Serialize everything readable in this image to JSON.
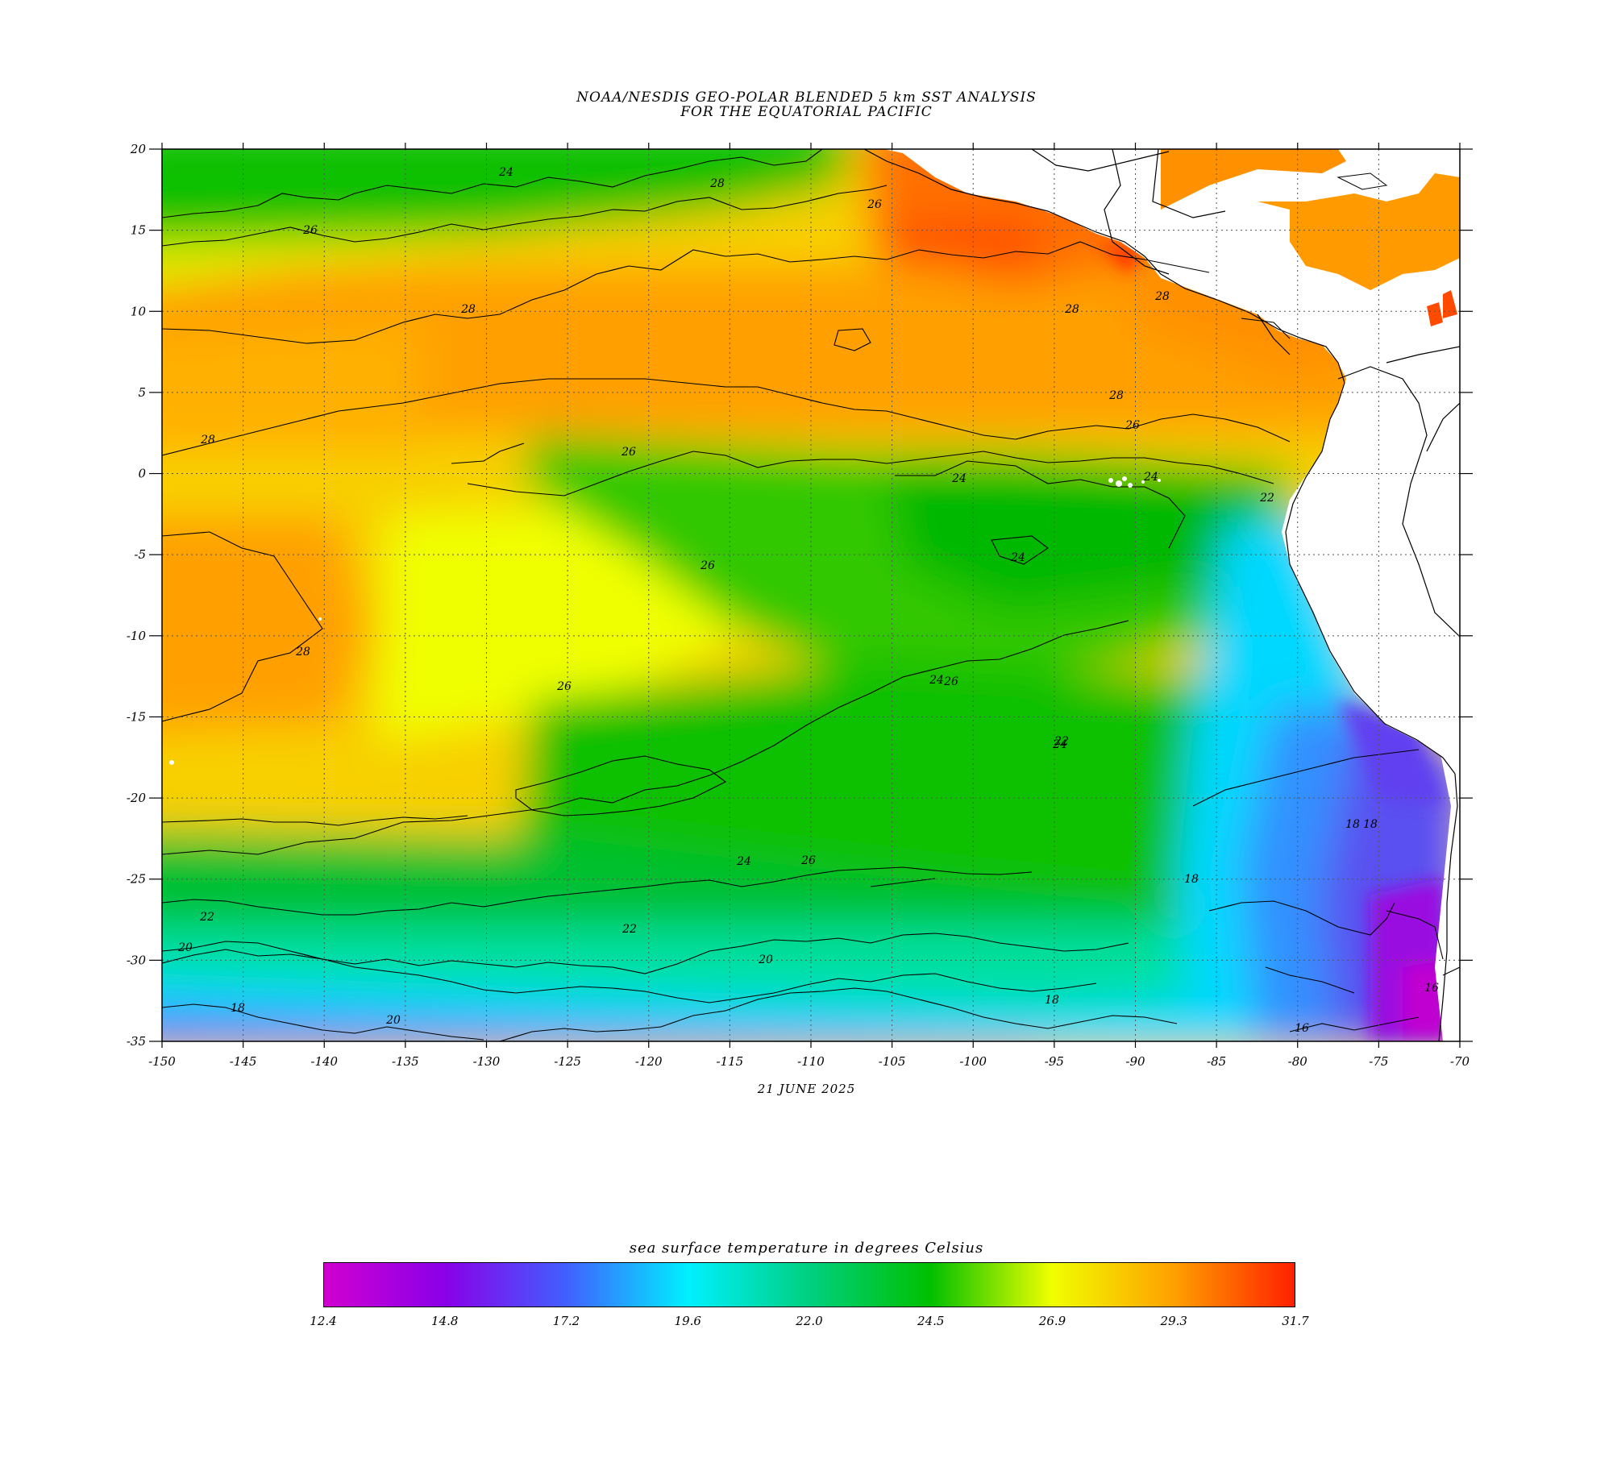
{
  "title_line1": "NOAA/NESDIS GEO-POLAR BLENDED 5 km SST ANALYSIS",
  "title_line2": "FOR THE EQUATORIAL PACIFIC",
  "date": "21 JUNE 2025",
  "colorbar": {
    "label": "sea surface temperature in degrees Celsius",
    "ticks": [
      "12.4",
      "14.8",
      "17.2",
      "19.6",
      "22.0",
      "24.5",
      "26.9",
      "29.3",
      "31.7"
    ],
    "colors": [
      "#d000d0",
      "#8a00e8",
      "#4060ff",
      "#00f0ff",
      "#00d080",
      "#00c000",
      "#f0ff00",
      "#ffa000",
      "#ff2000"
    ]
  },
  "map": {
    "lon_range": [
      -150,
      -70
    ],
    "lat_range": [
      -35,
      20
    ],
    "lon_ticks": [
      "-150",
      "-145",
      "-140",
      "-135",
      "-130",
      "-125",
      "-120",
      "-115",
      "-110",
      "-105",
      "-100",
      "-95",
      "-90",
      "-85",
      "-80",
      "-75",
      "-70"
    ],
    "lat_ticks": [
      "20",
      "15",
      "10",
      "5",
      "0",
      "-5",
      "-10",
      "-15",
      "-20",
      "-25",
      "-30",
      "-35"
    ],
    "contour_labels": [
      "24",
      "26",
      "28",
      "26",
      "28",
      "28",
      "28",
      "28",
      "26",
      "28",
      "26",
      "24",
      "24",
      "22",
      "24",
      "26",
      "28",
      "26",
      "26",
      "24",
      "24",
      "22",
      "26",
      "24",
      "22",
      "20",
      "18",
      "18",
      "20",
      "22",
      "18",
      "20",
      "18",
      "16",
      "18",
      "16"
    ]
  }
}
